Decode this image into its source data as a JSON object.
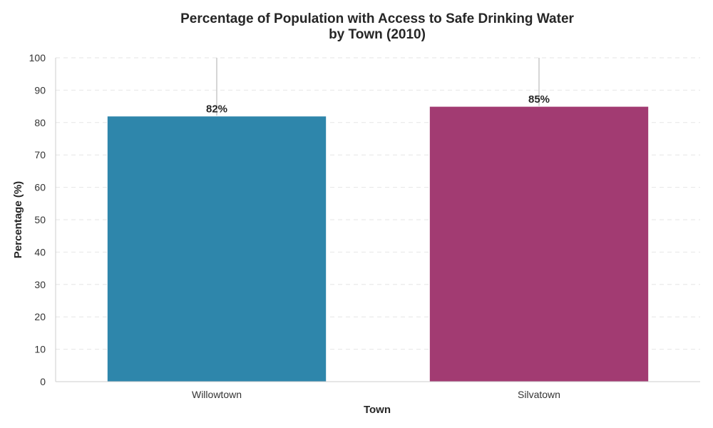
{
  "chart_data": {
    "type": "bar",
    "title_line1": "Percentage of Population with Access to Safe Drinking Water",
    "title_line2": "by Town (2010)",
    "xlabel": "Town",
    "ylabel": "Percentage (%)",
    "categories": [
      "Willowtown",
      "Silvatown"
    ],
    "values": [
      82,
      85
    ],
    "value_labels": [
      "82%",
      "85%"
    ],
    "error_upper": [
      100,
      100
    ],
    "ylim": [
      0,
      100
    ],
    "yticks": [
      0,
      10,
      20,
      30,
      40,
      50,
      60,
      70,
      80,
      90,
      100
    ],
    "ytick_labels": [
      "0",
      "10",
      "20",
      "30",
      "40",
      "50",
      "60",
      "70",
      "80",
      "90",
      "100"
    ],
    "colors": [
      "#2e86ab",
      "#a23b72"
    ],
    "grid": "horizontal dashed",
    "legend": "none"
  }
}
